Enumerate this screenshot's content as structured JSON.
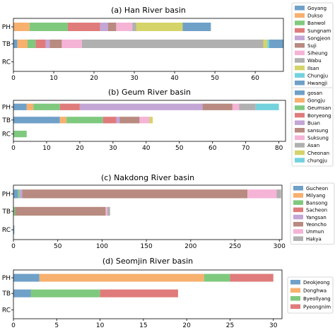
{
  "chart_data": [
    {
      "type": "bar",
      "orientation": "horizontal",
      "stacked": true,
      "title": "(a) Han River basin",
      "categories": [
        "PH",
        "TB",
        "RC"
      ],
      "xlim": [
        0,
        67
      ],
      "xticks": [
        0,
        10,
        20,
        30,
        40,
        50,
        60
      ],
      "legend_position": "right",
      "series": [
        {
          "name": "Goyang",
          "color": "#6fa0c8",
          "values": [
            0,
            1,
            0
          ]
        },
        {
          "name": "Dukso",
          "color": "#f7b06e",
          "values": [
            4,
            2.5,
            0
          ]
        },
        {
          "name": "Banwol",
          "color": "#7fc97f",
          "values": [
            9.5,
            2,
            0
          ]
        },
        {
          "name": "Sungnam",
          "color": "#e07b7b",
          "values": [
            8,
            2.5,
            0
          ]
        },
        {
          "name": "Songjeon",
          "color": "#c3a5d6",
          "values": [
            2,
            1,
            0
          ]
        },
        {
          "name": "Suji",
          "color": "#b88a80",
          "values": [
            2,
            3,
            0
          ]
        },
        {
          "name": "Siheung",
          "color": "#f5b3d6",
          "values": [
            4,
            5,
            0
          ]
        },
        {
          "name": "Wabu",
          "color": "#b0b0b0",
          "values": [
            1,
            45,
            0
          ]
        },
        {
          "name": "Ilsan",
          "color": "#d4d46a",
          "values": [
            11.5,
            1,
            0
          ]
        },
        {
          "name": "Chungju",
          "color": "#73d2de",
          "values": [
            0,
            0.5,
            0
          ]
        },
        {
          "name": "Hwangji",
          "color": "#6fa0c8",
          "values": [
            7,
            3.5,
            0
          ]
        }
      ]
    },
    {
      "type": "bar",
      "orientation": "horizontal",
      "stacked": true,
      "title": "(b) Geum River basin",
      "categories": [
        "PH",
        "TB",
        "RC"
      ],
      "xlim": [
        0,
        82
      ],
      "xticks": [
        0,
        10,
        20,
        30,
        40,
        50,
        60,
        70,
        80
      ],
      "legend_position": "right",
      "series": [
        {
          "name": "gosan",
          "color": "#6fa0c8",
          "values": [
            4,
            14,
            0
          ]
        },
        {
          "name": "Gongju",
          "color": "#f7b06e",
          "values": [
            2,
            2,
            0
          ]
        },
        {
          "name": "Geumsan",
          "color": "#7fc97f",
          "values": [
            8,
            11,
            4
          ]
        },
        {
          "name": "Boryeong",
          "color": "#e07b7b",
          "values": [
            6,
            4,
            0
          ]
        },
        {
          "name": "Buan",
          "color": "#c3a5d6",
          "values": [
            37,
            1,
            0
          ]
        },
        {
          "name": "sansung",
          "color": "#b88a80",
          "values": [
            9,
            6,
            0
          ]
        },
        {
          "name": "Suksung",
          "color": "#f5b3d6",
          "values": [
            2,
            3,
            0
          ]
        },
        {
          "name": "Asan",
          "color": "#b0b0b0",
          "values": [
            5,
            0,
            0
          ]
        },
        {
          "name": "Cheonan",
          "color": "#d4d46a",
          "values": [
            0,
            1,
            0
          ]
        },
        {
          "name": "chungju",
          "color": "#73d2de",
          "values": [
            7,
            0,
            0
          ]
        }
      ]
    },
    {
      "type": "bar",
      "orientation": "horizontal",
      "stacked": true,
      "title": "(c) Nakdong River basin",
      "categories": [
        "PH",
        "TB",
        "RC"
      ],
      "xlim": [
        0,
        303
      ],
      "xticks": [
        0,
        50,
        100,
        150,
        200,
        250,
        300
      ],
      "legend_position": "right",
      "series": [
        {
          "name": "Gucheon",
          "color": "#6fa0c8",
          "values": [
            5,
            0,
            1
          ]
        },
        {
          "name": "Milyang",
          "color": "#f7b06e",
          "values": [
            0,
            0,
            0
          ]
        },
        {
          "name": "Bansong",
          "color": "#7fc97f",
          "values": [
            2,
            2,
            0
          ]
        },
        {
          "name": "Sacheon",
          "color": "#e07b7b",
          "values": [
            0,
            0,
            0
          ]
        },
        {
          "name": "Yangsan",
          "color": "#c3a5d6",
          "values": [
            3,
            0,
            0
          ]
        },
        {
          "name": "Yeoncho",
          "color": "#b88a80",
          "values": [
            254,
            102,
            0
          ]
        },
        {
          "name": "Unmun",
          "color": "#f5b3d6",
          "values": [
            33,
            2,
            0
          ]
        },
        {
          "name": "Hakya",
          "color": "#b0b0b0",
          "values": [
            5,
            3,
            0
          ]
        }
      ]
    },
    {
      "type": "bar",
      "orientation": "horizontal",
      "stacked": true,
      "title": "(d) Seomjin River basin",
      "categories": [
        "PH",
        "TB",
        "RC"
      ],
      "xlim": [
        0,
        31
      ],
      "xticks": [
        0,
        5,
        10,
        15,
        20,
        25,
        30
      ],
      "legend_position": "right",
      "series": [
        {
          "name": "Deokjeong",
          "color": "#6fa0c8",
          "values": [
            3,
            2,
            0
          ]
        },
        {
          "name": "Donghwa",
          "color": "#f7b06e",
          "values": [
            19,
            0,
            0
          ]
        },
        {
          "name": "Byeollyang",
          "color": "#7fc97f",
          "values": [
            3,
            8,
            0
          ]
        },
        {
          "name": "Pyeongnim",
          "color": "#e07b7b",
          "values": [
            5,
            9,
            0
          ]
        }
      ]
    }
  ]
}
